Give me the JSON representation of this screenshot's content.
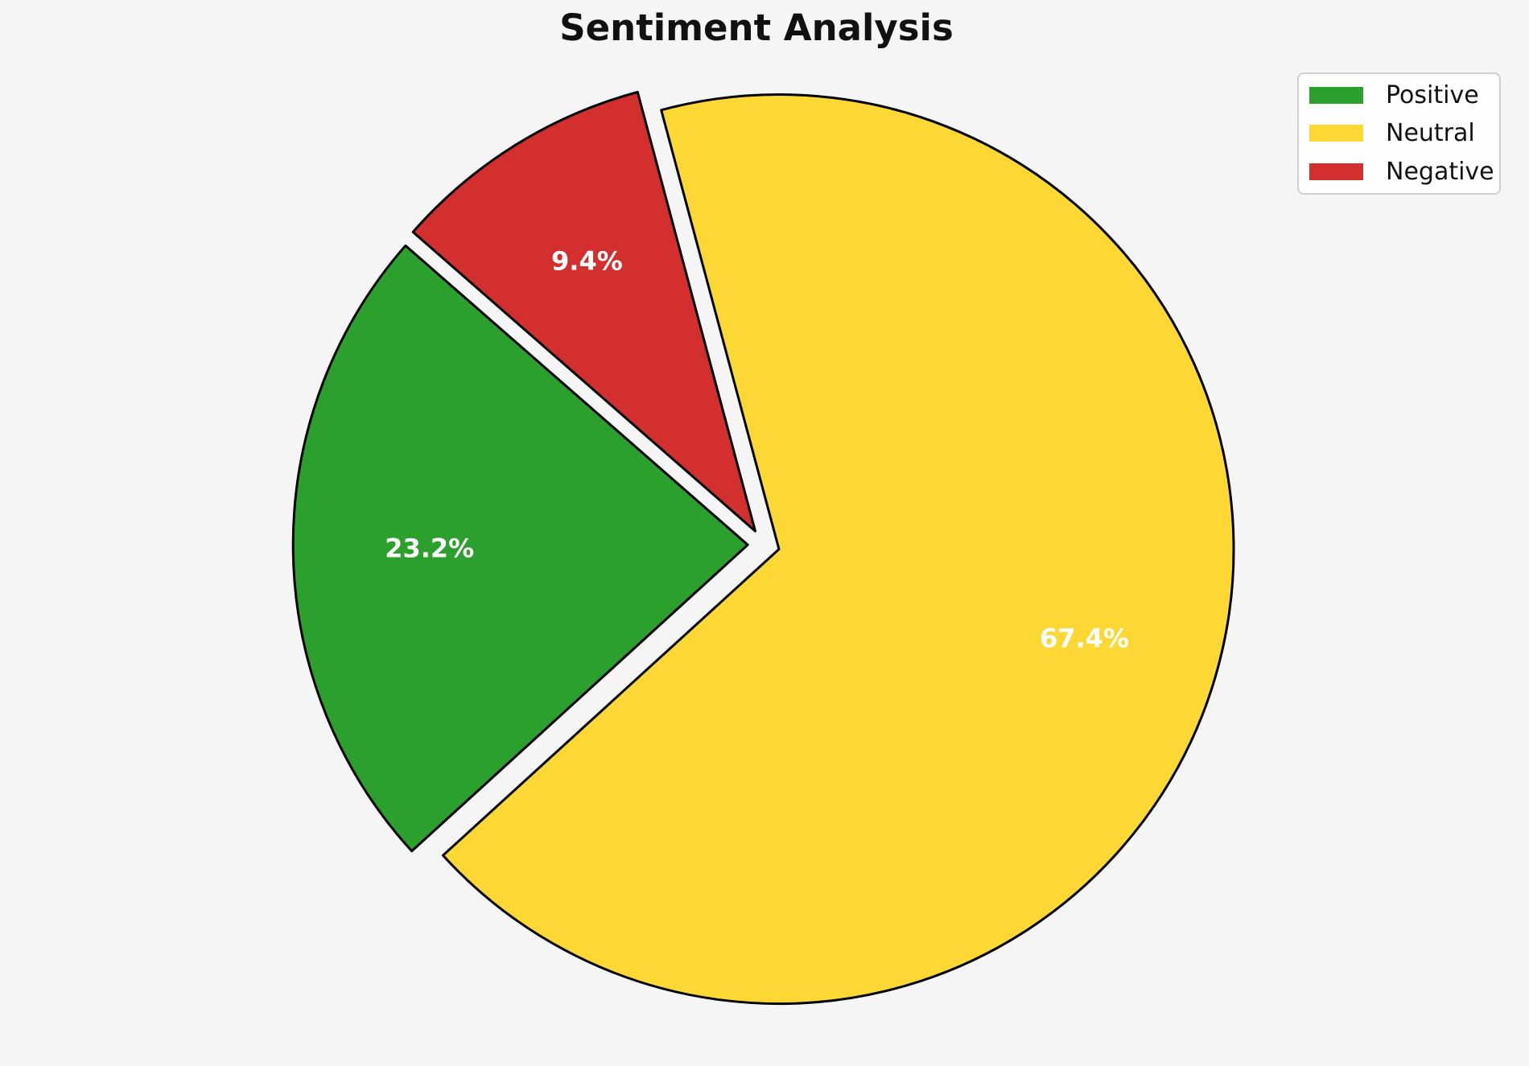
{
  "figure": {
    "title": "Sentiment Analysis",
    "background_color": "#f5f5f5"
  },
  "legend": {
    "position": "upper right",
    "items": [
      {
        "label": "Positive",
        "color": "#2ca02c"
      },
      {
        "label": "Neutral",
        "color": "#fdd835"
      },
      {
        "label": "Negative",
        "color": "#d32f2f"
      }
    ]
  },
  "chart_data": {
    "type": "pie",
    "title": "Sentiment Analysis",
    "slices": [
      {
        "label": "Positive",
        "value_pct": 23.2,
        "pct_text": "23.2%",
        "color": "#2ca02c"
      },
      {
        "label": "Neutral",
        "value_pct": 67.4,
        "pct_text": "67.4%",
        "color": "#fdd835"
      },
      {
        "label": "Negative",
        "value_pct": 9.4,
        "pct_text": "9.4%",
        "color": "#d32f2f"
      }
    ],
    "start_angle_deg": 138.84,
    "counterclockwise": true,
    "explode": 0.035,
    "pct_distance": 0.7,
    "edge_color": "#000000",
    "edge_width": 3,
    "pct_label_color": "#ffffff",
    "legend_position": "upper right"
  }
}
